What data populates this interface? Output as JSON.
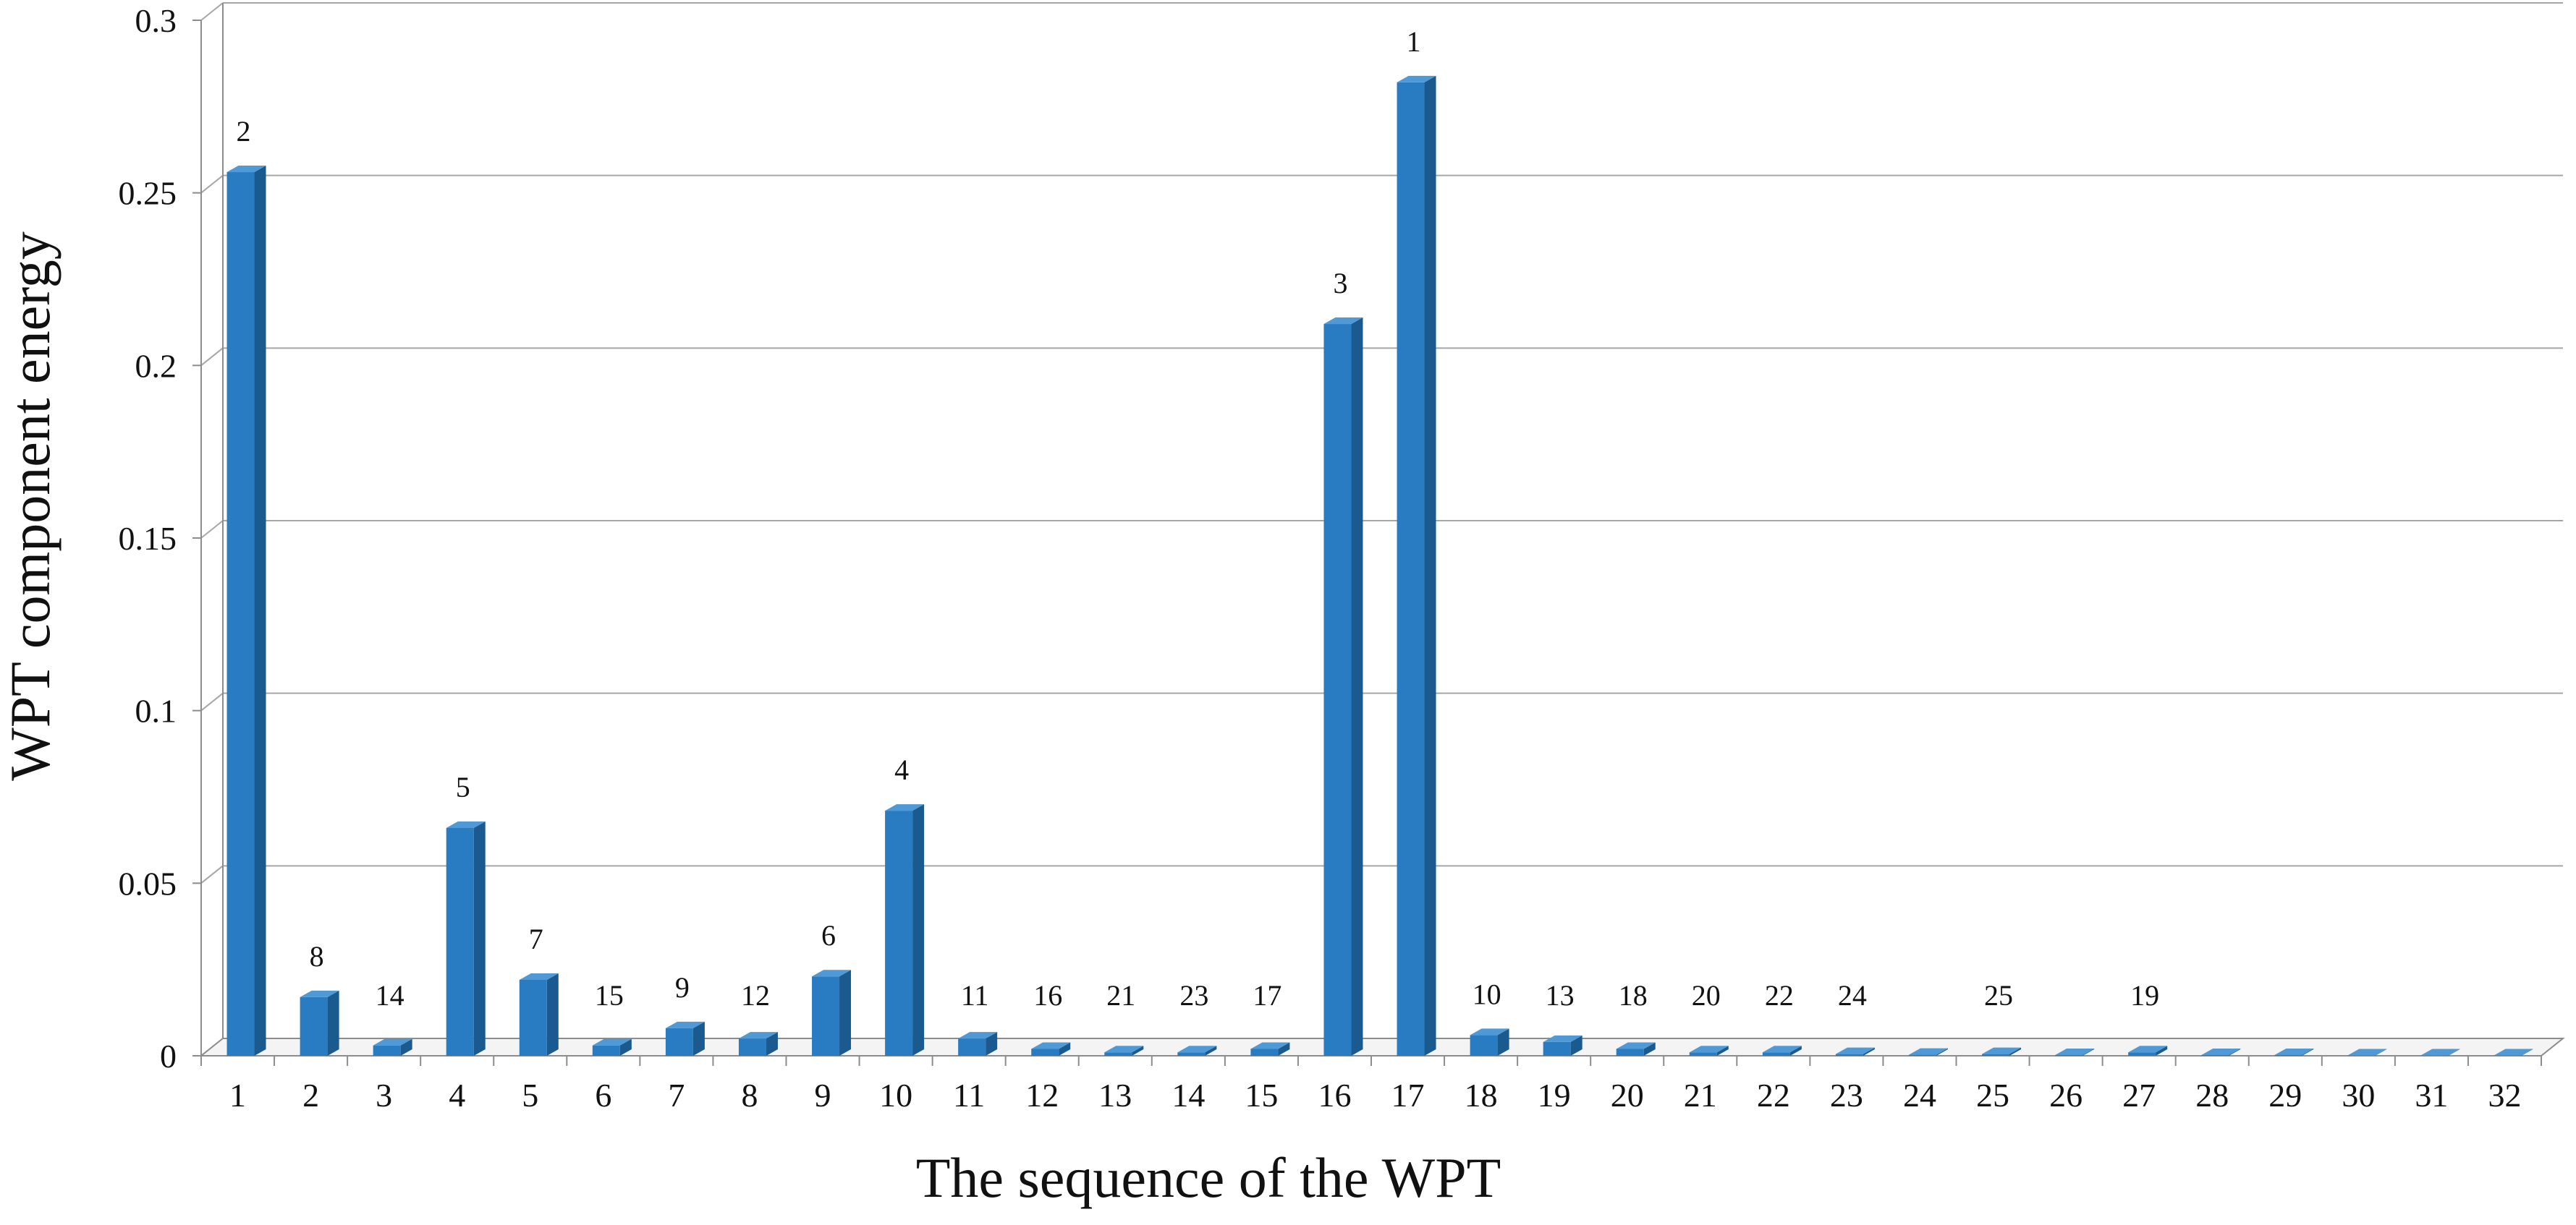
{
  "chart_data": {
    "type": "bar",
    "title": "",
    "xlabel": "The sequence of the WPT",
    "ylabel": "WPT component energy",
    "ylim": [
      0,
      0.3
    ],
    "y_ticks": [
      "0",
      "0.05",
      "0.1",
      "0.15",
      "0.2",
      "0.25",
      "0.3"
    ],
    "y_tick_values": [
      0,
      0.05,
      0.1,
      0.15,
      0.2,
      0.25,
      0.3
    ],
    "grid": true,
    "categories": [
      "1",
      "2",
      "3",
      "4",
      "5",
      "6",
      "7",
      "8",
      "9",
      "10",
      "11",
      "12",
      "13",
      "14",
      "15",
      "16",
      "17",
      "18",
      "19",
      "20",
      "21",
      "22",
      "23",
      "24",
      "25",
      "26",
      "27",
      "28",
      "29",
      "30",
      "31",
      "32"
    ],
    "values": [
      0.256,
      0.017,
      0.003,
      0.066,
      0.022,
      0.003,
      0.008,
      0.005,
      0.023,
      0.071,
      0.005,
      0.002,
      0.001,
      0.001,
      0.002,
      0.212,
      0.282,
      0.006,
      0.004,
      0.002,
      0.001,
      0.001,
      0.0005,
      0.0003,
      0.0005,
      0.0002,
      0.001,
      0.0002,
      0.0002,
      0.0001,
      0.0001,
      0.0001
    ],
    "data_labels": [
      "2",
      "8",
      "14",
      "5",
      "7",
      "15",
      "9",
      "12",
      "6",
      "4",
      "11",
      "16",
      "21",
      "23",
      "17",
      "3",
      "1",
      "10",
      "13",
      "18",
      "20",
      "22",
      "24",
      "",
      "25",
      "",
      "19",
      "",
      "",
      "",
      "",
      ""
    ],
    "bar_color": "#2a7cc2",
    "bar_side_color": "#1b5a8f",
    "bar_top_color": "#4f9ad6",
    "grid_color": "#a6a6a6",
    "axis_color": "#8c8c8c"
  }
}
